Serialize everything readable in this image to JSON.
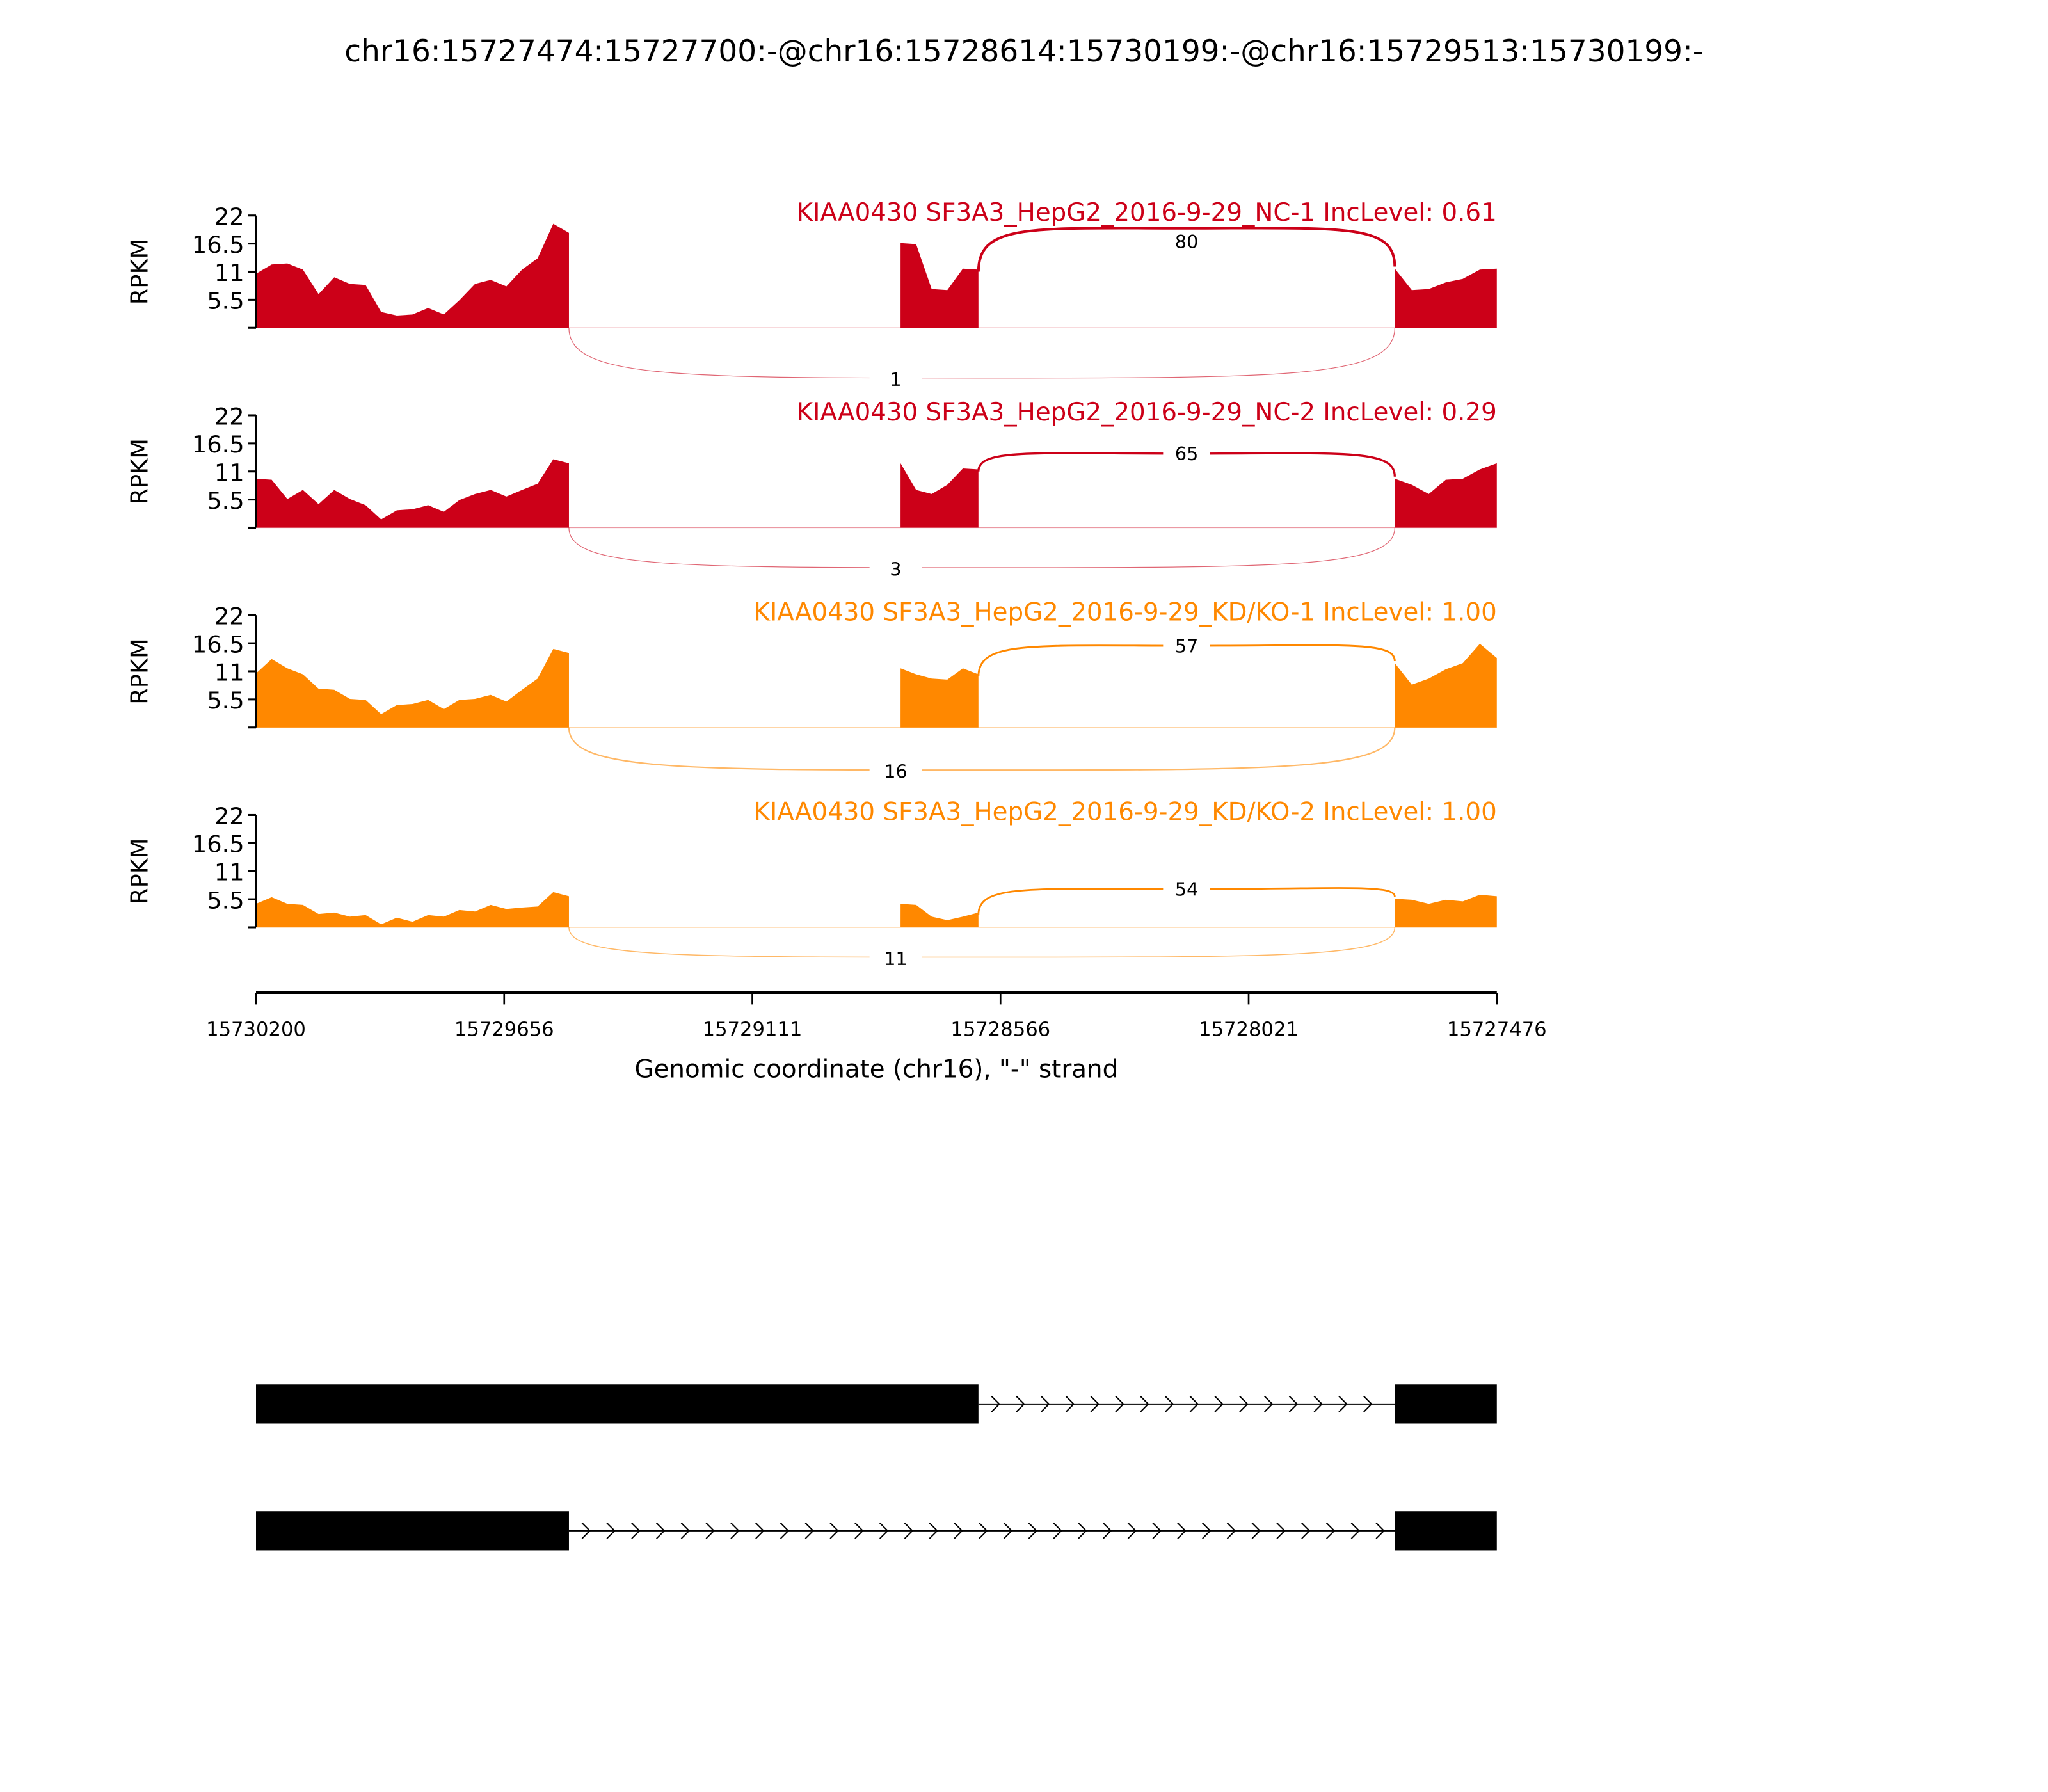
{
  "chart_data": {
    "type": "area",
    "title": "chr16:15727474:15727700:-@chr16:15728614:15730199:-@chr16:15729513:15730199:-",
    "xlabel": "Genomic coordinate (chr16), \"-\" strand",
    "ylabel": "RPKM",
    "xlim": [
      15730200,
      15727476
    ],
    "x_ticks": [
      "15730200",
      "15729656",
      "15729111",
      "15728566",
      "15728021",
      "15727476"
    ],
    "x_tick_values": [
      15730200,
      15729656,
      15729111,
      15728566,
      15728021,
      15727476
    ],
    "ylim": [
      0,
      22
    ],
    "y_ticks": [
      "22",
      "16.5",
      "11",
      "5.5"
    ],
    "y_tick_values": [
      22,
      16.5,
      11,
      5.5,
      0
    ],
    "exons": [
      [
        15730200,
        15729513
      ],
      [
        15728785,
        15728614
      ],
      [
        15727700,
        15727476
      ]
    ],
    "panels": [
      {
        "label": "KIAA0430 SF3A3_HepG2_2016-9-29_NC-1 IncLevel: 0.61",
        "color": "#cc0018",
        "coverage": [
          [
            11,
            12,
            13,
            11,
            7,
            9.5,
            9,
            8,
            3.5,
            2,
            3,
            3.5,
            3,
            5,
            9,
            9,
            8.5,
            11,
            14,
            20,
            19
          ],
          [
            17,
            16,
            8,
            7,
            12,
            11
          ],
          [
            12,
            7,
            8,
            8.5,
            10,
            11,
            12
          ]
        ],
        "inclusion_junction": "80",
        "skipping_junction": "1",
        "inc_peak": 19.5,
        "skip_depth": 6
      },
      {
        "label": "KIAA0430 SF3A3_HepG2_2016-9-29_NC-2 IncLevel: 0.29",
        "color": "#cc0018",
        "coverage": [
          [
            10,
            9,
            6,
            7,
            5,
            7,
            6,
            4,
            2,
            3,
            4,
            4,
            3.5,
            5,
            7,
            7,
            6.5,
            7,
            9,
            13,
            13
          ],
          [
            13,
            7,
            7,
            8,
            12,
            11
          ],
          [
            10,
            8,
            7,
            9,
            10,
            11,
            13
          ]
        ],
        "inclusion_junction": "65",
        "skipping_junction": "3",
        "inc_peak": 14.5,
        "skip_depth": 4
      },
      {
        "label": "KIAA0430 SF3A3_HepG2_2016-9-29_KD/KO-1 IncLevel: 1.00",
        "color": "#ff8800",
        "coverage": [
          [
            11,
            13,
            12,
            10,
            8,
            7,
            6,
            5,
            3,
            4,
            5,
            5,
            4,
            5,
            6,
            6,
            5.5,
            7,
            10,
            15,
            15
          ],
          [
            12,
            10,
            10,
            9,
            12,
            10
          ],
          [
            13,
            8,
            10,
            11,
            13,
            16,
            14
          ]
        ],
        "inclusion_junction": "57",
        "skipping_junction": "16",
        "inc_peak": 16,
        "skip_depth": 4.5
      },
      {
        "label": "KIAA0430 SF3A3_HepG2_2016-9-29_KD/KO-2 IncLevel: 1.00",
        "color": "#ff8800",
        "coverage": [
          [
            5,
            5.5,
            5,
            4,
            3,
            2.5,
            2.5,
            2,
            1,
            1.5,
            1.5,
            2,
            2.5,
            3,
            3.5,
            4,
            4,
            3.5,
            4.5,
            6.5,
            6.5
          ],
          [
            5,
            4,
            2.5,
            1,
            2.5,
            2.5
          ],
          [
            6,
            5,
            5,
            5,
            5.5,
            6,
            6.5
          ]
        ],
        "inclusion_junction": "54",
        "skipping_junction": "11",
        "inc_peak": 7.5,
        "skip_depth": 2
      }
    ],
    "gene_models": [
      {
        "exons": [
          [
            15730200,
            15728614
          ],
          [
            15727700,
            15727476
          ]
        ]
      },
      {
        "exons": [
          [
            15730200,
            15729513
          ],
          [
            15727700,
            15727476
          ]
        ]
      }
    ]
  }
}
